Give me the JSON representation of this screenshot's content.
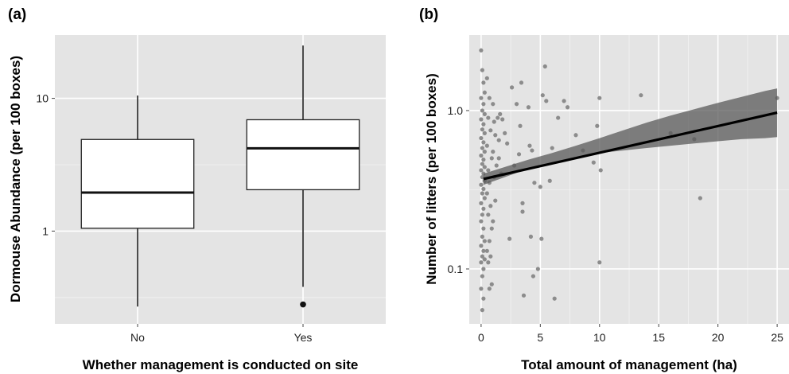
{
  "chart_data": [
    {
      "panel": "(a)",
      "type": "box",
      "xlabel": "Whether management is conducted on site",
      "ylabel": "Dormouse Abundance (per 100 boxes)",
      "yscale": "log",
      "ylim": [
        0.2,
        30
      ],
      "yticks": [
        {
          "value": 1,
          "label": "1"
        },
        {
          "value": 10,
          "label": "10"
        }
      ],
      "categories": [
        "No",
        "Yes"
      ],
      "boxes": [
        {
          "category": "No",
          "whisker_low": 0.27,
          "q1": 1.05,
          "median": 1.95,
          "q3": 4.9,
          "whisker_high": 10.5,
          "outliers": []
        },
        {
          "category": "Yes",
          "whisker_low": 0.38,
          "q1": 2.05,
          "median": 4.2,
          "q3": 6.9,
          "whisker_high": 25,
          "outliers": [
            0.28
          ]
        }
      ],
      "grid": true,
      "background": "#e4e4e4"
    },
    {
      "panel": "(b)",
      "type": "scatter",
      "xlabel": "Total amount of management (ha)",
      "ylabel": "Number of litters (per 100 boxes)",
      "xlim": [
        -1,
        26
      ],
      "yscale": "log",
      "ylim": [
        0.045,
        3.0
      ],
      "xticks": [
        {
          "value": 0,
          "label": "0"
        },
        {
          "value": 5,
          "label": "5"
        },
        {
          "value": 10,
          "label": "10"
        },
        {
          "value": 15,
          "label": "15"
        },
        {
          "value": 20,
          "label": "20"
        },
        {
          "value": 25,
          "label": "25"
        }
      ],
      "yticks": [
        {
          "value": 0.1,
          "label": "0.1"
        },
        {
          "value": 1.0,
          "label": "1.0"
        }
      ],
      "points": [
        [
          0.0,
          2.4
        ],
        [
          0.1,
          1.8
        ],
        [
          0.2,
          1.5
        ],
        [
          0.3,
          1.3
        ],
        [
          0.0,
          1.2
        ],
        [
          0.2,
          1.1
        ],
        [
          0.1,
          1.0
        ],
        [
          0.3,
          0.95
        ],
        [
          0.0,
          0.88
        ],
        [
          0.2,
          0.82
        ],
        [
          0.1,
          0.76
        ],
        [
          0.3,
          0.72
        ],
        [
          0.0,
          0.67
        ],
        [
          0.2,
          0.63
        ],
        [
          0.1,
          0.58
        ],
        [
          0.3,
          0.55
        ],
        [
          0.0,
          0.52
        ],
        [
          0.2,
          0.49
        ],
        [
          0.1,
          0.46
        ],
        [
          0.3,
          0.44
        ],
        [
          0.0,
          0.42
        ],
        [
          0.2,
          0.4
        ],
        [
          0.1,
          0.38
        ],
        [
          0.3,
          0.36
        ],
        [
          0.0,
          0.34
        ],
        [
          0.2,
          0.32
        ],
        [
          0.1,
          0.3
        ],
        [
          0.3,
          0.28
        ],
        [
          0.0,
          0.26
        ],
        [
          0.2,
          0.24
        ],
        [
          0.1,
          0.22
        ],
        [
          0.0,
          0.2
        ],
        [
          0.2,
          0.18
        ],
        [
          0.1,
          0.16
        ],
        [
          0.3,
          0.15
        ],
        [
          0.0,
          0.14
        ],
        [
          0.2,
          0.13
        ],
        [
          0.1,
          0.12
        ],
        [
          0.3,
          0.115
        ],
        [
          0.0,
          0.11
        ],
        [
          0.2,
          0.1
        ],
        [
          0.1,
          0.09
        ],
        [
          0.0,
          0.075
        ],
        [
          0.2,
          0.065
        ],
        [
          0.1,
          0.055
        ],
        [
          0.5,
          1.6
        ],
        [
          0.7,
          1.2
        ],
        [
          0.6,
          0.9
        ],
        [
          0.8,
          0.75
        ],
        [
          0.5,
          0.6
        ],
        [
          0.9,
          0.5
        ],
        [
          0.6,
          0.42
        ],
        [
          0.7,
          0.35
        ],
        [
          0.5,
          0.3
        ],
        [
          0.8,
          0.25
        ],
        [
          0.6,
          0.22
        ],
        [
          0.9,
          0.18
        ],
        [
          0.7,
          0.15
        ],
        [
          0.5,
          0.13
        ],
        [
          0.8,
          0.12
        ],
        [
          0.6,
          0.11
        ],
        [
          0.7,
          0.075
        ],
        [
          0.9,
          0.08
        ],
        [
          1.0,
          1.1
        ],
        [
          1.1,
          0.85
        ],
        [
          1.2,
          0.7
        ],
        [
          1.0,
          0.55
        ],
        [
          1.3,
          0.45
        ],
        [
          1.1,
          0.38
        ],
        [
          1.2,
          0.27
        ],
        [
          1.0,
          0.2
        ],
        [
          1.4,
          0.9
        ],
        [
          1.5,
          0.65
        ],
        [
          1.6,
          0.95
        ],
        [
          1.8,
          0.88
        ],
        [
          1.5,
          0.5
        ],
        [
          1.7,
          0.4
        ],
        [
          2.0,
          0.72
        ],
        [
          2.2,
          0.62
        ],
        [
          2.4,
          0.155
        ],
        [
          2.6,
          1.4
        ],
        [
          2.8,
          0.45
        ],
        [
          3.0,
          1.1
        ],
        [
          3.2,
          0.53
        ],
        [
          3.3,
          0.8
        ],
        [
          3.4,
          1.5
        ],
        [
          3.5,
          0.26
        ],
        [
          3.5,
          0.23
        ],
        [
          3.6,
          0.068
        ],
        [
          4.0,
          1.05
        ],
        [
          4.1,
          0.6
        ],
        [
          4.2,
          0.16
        ],
        [
          4.3,
          0.56
        ],
        [
          4.4,
          0.09
        ],
        [
          4.5,
          0.35
        ],
        [
          4.8,
          0.1
        ],
        [
          5.0,
          0.33
        ],
        [
          5.1,
          0.155
        ],
        [
          5.2,
          1.25
        ],
        [
          5.4,
          1.9
        ],
        [
          5.5,
          1.15
        ],
        [
          5.8,
          0.36
        ],
        [
          6.0,
          0.58
        ],
        [
          6.2,
          0.065
        ],
        [
          6.5,
          0.9
        ],
        [
          7.0,
          1.15
        ],
        [
          7.3,
          1.05
        ],
        [
          8.0,
          0.7
        ],
        [
          8.6,
          0.56
        ],
        [
          9.5,
          0.47
        ],
        [
          9.8,
          0.8
        ],
        [
          10.0,
          1.2
        ],
        [
          10.1,
          0.42
        ],
        [
          10.0,
          0.11
        ],
        [
          13.5,
          1.25
        ],
        [
          16.0,
          0.72
        ],
        [
          18.0,
          0.66
        ],
        [
          18.5,
          0.28
        ],
        [
          25.0,
          1.2
        ]
      ],
      "trend": {
        "x": [
          0.2,
          25
        ],
        "y": [
          0.37,
          0.97
        ]
      },
      "ribbon": {
        "x": [
          0.2,
          2,
          4,
          6,
          8,
          10,
          12,
          14,
          16,
          18,
          20,
          22,
          24,
          25
        ],
        "lower": [
          0.34,
          0.38,
          0.43,
          0.47,
          0.51,
          0.54,
          0.56,
          0.58,
          0.6,
          0.62,
          0.64,
          0.66,
          0.67,
          0.68
        ],
        "upper": [
          0.4,
          0.44,
          0.49,
          0.54,
          0.6,
          0.67,
          0.75,
          0.84,
          0.93,
          1.02,
          1.12,
          1.22,
          1.33,
          1.38
        ]
      },
      "grid": true,
      "background": "#e4e4e4"
    }
  ]
}
